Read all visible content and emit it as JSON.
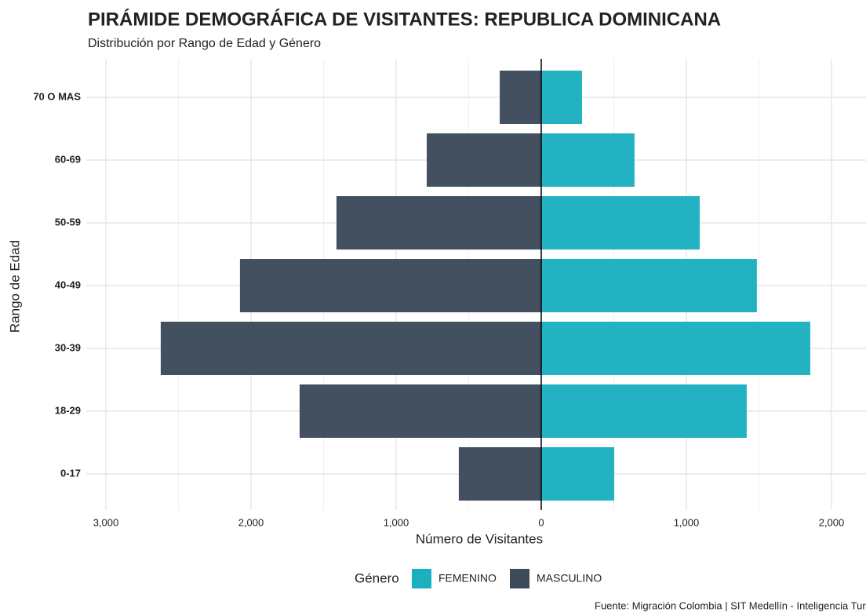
{
  "chart_data": {
    "type": "pyramid",
    "title": "PIRÁMIDE DEMOGRÁFICA DE VISITANTES: REPUBLICA DOMINICANA",
    "subtitle": "Distribución por Rango de Edad y Género",
    "x_label": "Número de Visitantes",
    "y_label": "Rango de Edad",
    "legend_title": "Género",
    "caption": "Fuente: Migración Colombia | SIT Medellín - Inteligencia Turística",
    "categories": [
      "0-17",
      "18-29",
      "30-39",
      "40-49",
      "50-59",
      "60-69",
      "70 O MAS"
    ],
    "series": [
      {
        "name": "FEMENINO",
        "color": "#1bb0c0",
        "values": [
          503,
          1416,
          1854,
          1486,
          1092,
          643,
          281
        ]
      },
      {
        "name": "MASCULINO",
        "color": "#3d4a5a",
        "values": [
          -568,
          -1665,
          -2622,
          -2076,
          -1411,
          -789,
          -286
        ]
      }
    ],
    "xlim": [
      -3135,
      2238
    ],
    "xticks": [
      {
        "value": -3000,
        "label": "3,000"
      },
      {
        "value": -2000,
        "label": "2,000"
      },
      {
        "value": -1000,
        "label": "1,000"
      },
      0,
      {
        "value": 1000,
        "label": "1,000"
      },
      {
        "value": 2000,
        "label": "2,000"
      }
    ],
    "x_minor_ticks": [
      -2500,
      -1500,
      -500,
      500,
      1500
    ],
    "grid": true
  }
}
